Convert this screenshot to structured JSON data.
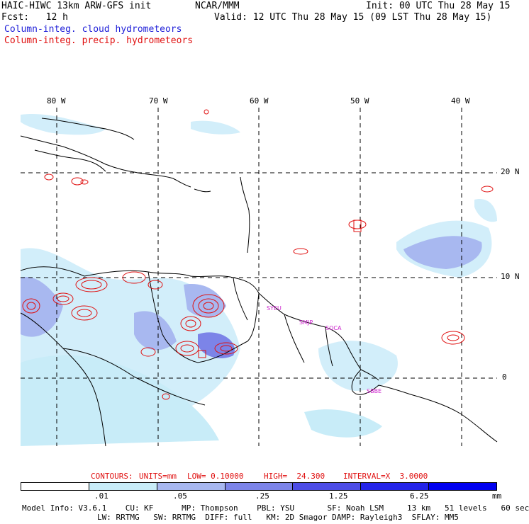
{
  "header": {
    "model_title": "HAIC-HIWC 13km ARW-GFS init",
    "org": "NCAR/MMM",
    "init": "Init: 00 UTC Thu 28 May 15",
    "fcst": "Fcst:   12 h",
    "valid": "Valid: 12 UTC Thu 28 May 15 (09 LST Thu 28 May 15)",
    "field1": "Column-integ. cloud hydrometeors",
    "field2": "Column-integ. precip. hydrometeors",
    "field1_color": "#1f1fd8",
    "field2_color": "#e01010"
  },
  "map": {
    "lon_labels": [
      "80 W",
      "70 W",
      "60 W",
      "50 W",
      "40 W"
    ],
    "lat_labels": [
      "20 N",
      "10 N",
      "0"
    ],
    "sites": [
      "SYEU",
      "SMJP",
      "SOCA",
      "SBBE"
    ],
    "gridlines": "dashed",
    "coast_color": "#000000",
    "contour_color": "#e01010"
  },
  "contours_info": {
    "label": "CONTOURS:",
    "units": "UNITS=mm",
    "low": "LOW= 0.10000",
    "high": "HIGH=  24.300",
    "interval": "INTERVAL=X  3.0000"
  },
  "colorbar": {
    "colors": [
      "#ffffff",
      "#c8ecf8",
      "#a8b8f0",
      "#7c84e8",
      "#4d4de6",
      "#2424e8",
      "#0000f0"
    ],
    "tick_labels": [
      ".01",
      ".05",
      ".25",
      "1.25",
      "6.25"
    ],
    "units": "mm"
  },
  "footer": {
    "line1": "Model Info: V3.6.1    CU: KF      MP: Thompson    PBL: YSU       SF: Noah LSM     13 km   51 levels   60 sec",
    "line2": "                LW: RRTMG   SW: RRTMG  DIFF: full   KM: 2D Smagor DAMP: Rayleigh3  SFLAY: MM5"
  }
}
